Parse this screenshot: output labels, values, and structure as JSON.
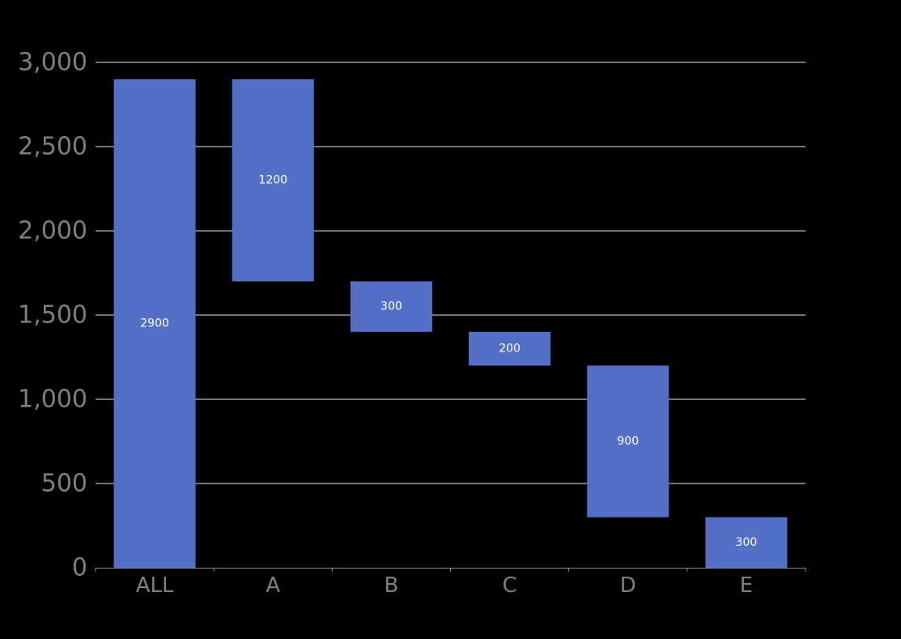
{
  "colors": {
    "background": "#000000",
    "bar": "#5470c6",
    "grid": "#e6e6e6",
    "axis": "#888888",
    "tick_text": "#7f7f7f",
    "bar_label_text": "#ffffff"
  },
  "chart_data": {
    "type": "bar",
    "subtype": "waterfall",
    "title": "",
    "xlabel": "",
    "ylabel": "",
    "categories": [
      "ALL",
      "A",
      "B",
      "C",
      "D",
      "E"
    ],
    "values": [
      2900,
      1200,
      300,
      200,
      900,
      300
    ],
    "bases": [
      0,
      1700,
      1400,
      1200,
      300,
      0
    ],
    "labels": [
      "2900",
      "1200",
      "300",
      "200",
      "900",
      "300"
    ],
    "ylim": [
      0,
      3000
    ],
    "y_ticks": [
      0,
      500,
      1000,
      1500,
      2000,
      2500,
      3000
    ],
    "y_tick_labels": [
      "0",
      "500",
      "1,000",
      "1,500",
      "2,000",
      "2,500",
      "3,000"
    ],
    "grid": true,
    "legend": "none"
  }
}
